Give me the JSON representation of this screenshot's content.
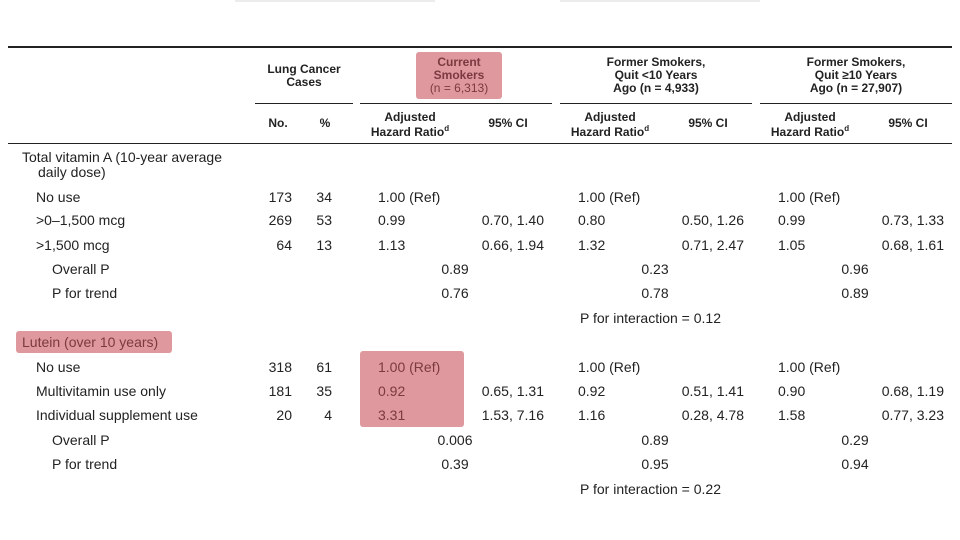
{
  "headers": {
    "lung_cancer_cases": [
      "Lung Cancer",
      "Cases"
    ],
    "current_smokers": [
      "Current",
      "Smokers",
      "(n = 6,313)"
    ],
    "former_lt10": [
      "Former Smokers,",
      "Quit <10 Years",
      "Ago (n = 4,933)"
    ],
    "former_ge10": [
      "Former Smokers,",
      "Quit ≥10 Years",
      "Ago (n = 27,907)"
    ],
    "no": "No.",
    "pct": "%",
    "ahr": [
      "Adjusted",
      "Hazard Ratio"
    ],
    "ahr_sup": "d",
    "ci": "95% CI"
  },
  "section_vitamin_a": {
    "title": [
      "Total vitamin A (10-year average",
      "daily dose)"
    ],
    "rows": [
      {
        "label": "No use",
        "no": "173",
        "pct": "34",
        "cur_hr": "1.00 (Ref)",
        "cur_ci": "",
        "f1_hr": "1.00 (Ref)",
        "f1_ci": "",
        "f2_hr": "1.00 (Ref)",
        "f2_ci": ""
      },
      {
        "label": ">0–1,500 mcg",
        "no": "269",
        "pct": "53",
        "cur_hr": "0.99",
        "cur_ci": "0.70, 1.40",
        "f1_hr": "0.80",
        "f1_ci": "0.50, 1.26",
        "f2_hr": "0.99",
        "f2_ci": "0.73, 1.33"
      },
      {
        "label": ">1,500 mcg",
        "no": "64",
        "pct": "13",
        "cur_hr": "1.13",
        "cur_ci": "0.66, 1.94",
        "f1_hr": "1.32",
        "f1_ci": "0.71, 2.47",
        "f2_hr": "1.05",
        "f2_ci": "0.68, 1.61"
      }
    ],
    "overall_p": {
      "label": "Overall P",
      "cur": "0.89",
      "f1": "0.23",
      "f2": "0.96"
    },
    "p_trend": {
      "label": "P for trend",
      "cur": "0.76",
      "f1": "0.78",
      "f2": "0.89"
    },
    "interaction": "P for interaction = 0.12"
  },
  "section_lutein": {
    "title": "Lutein (over 10 years)",
    "rows": [
      {
        "label": "No use",
        "no": "318",
        "pct": "61",
        "cur_hr": "1.00 (Ref)",
        "cur_ci": "",
        "f1_hr": "1.00 (Ref)",
        "f1_ci": "",
        "f2_hr": "1.00 (Ref)",
        "f2_ci": ""
      },
      {
        "label": "Multivitamin use only",
        "no": "181",
        "pct": "35",
        "cur_hr": "0.92",
        "cur_ci": "0.65, 1.31",
        "f1_hr": "0.92",
        "f1_ci": "0.51, 1.41",
        "f2_hr": "0.90",
        "f2_ci": "0.68, 1.19"
      },
      {
        "label": "Individual supplement use",
        "no": "20",
        "pct": "4",
        "cur_hr": "3.31",
        "cur_ci": "1.53, 7.16",
        "f1_hr": "1.16",
        "f1_ci": "0.28, 4.78",
        "f2_hr": "1.58",
        "f2_ci": "0.77, 3.23"
      }
    ],
    "overall_p": {
      "label": "Overall P",
      "cur": "0.006",
      "f1": "0.89",
      "f2": "0.29"
    },
    "p_trend": {
      "label": "P for trend",
      "cur": "0.39",
      "f1": "0.95",
      "f2": "0.94"
    },
    "interaction": "P for interaction = 0.22"
  },
  "colors": {
    "highlight": "#d9868c",
    "rule": "#222222"
  }
}
